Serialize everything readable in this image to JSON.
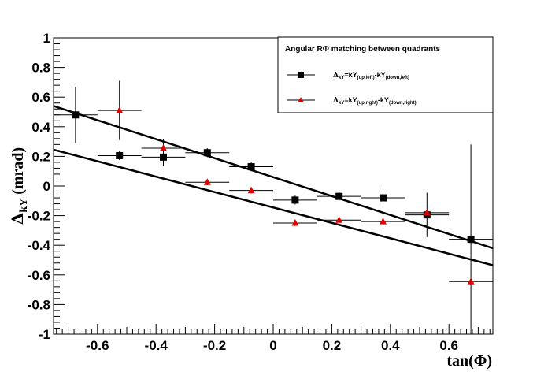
{
  "chart_data": {
    "type": "scatter",
    "title": "",
    "xlabel": "tan(Φ)",
    "ylabel_main": "Δ",
    "ylabel_sub": "kY",
    "ylabel_unit": "(mrad)",
    "xlim": [
      -0.75,
      0.75
    ],
    "ylim": [
      -1,
      1
    ],
    "x_ticks": [
      -0.6,
      -0.4,
      -0.2,
      0,
      0.2,
      0.4,
      0.6
    ],
    "x_tick_labels": [
      "-0.6",
      "-0.4",
      "-0.2",
      "0",
      "0.2",
      "0.4",
      "0.6"
    ],
    "y_ticks": [
      -1,
      -0.8,
      -0.6,
      -0.4,
      -0.2,
      0,
      0.2,
      0.4,
      0.6,
      0.8,
      1
    ],
    "y_tick_labels": [
      "-1",
      "-0.8",
      "-0.6",
      "-0.4",
      "-0.2",
      "0",
      "0.2",
      "0.4",
      "0.6",
      "0.8",
      "1"
    ],
    "grid": false,
    "legend": {
      "title": "Angular RΦ matching between quadrants",
      "placement": "top-right",
      "entries": [
        {
          "main": "Δ",
          "sub1": "kY",
          "eq": "=kY",
          "sub2": "(up,left)",
          "mid": "-kY",
          "sub3": "(down,left)"
        },
        {
          "main": "Δ",
          "sub1": "kY",
          "eq": "=kY",
          "sub2": "(up,right)",
          "mid": "-kY",
          "sub3": "(down,right)"
        }
      ]
    },
    "series": [
      {
        "marker": "square",
        "color": "#000000",
        "points": [
          {
            "x": -0.675,
            "y": 0.48,
            "xerr": 0.075,
            "yerr": 0.19
          },
          {
            "x": -0.525,
            "y": 0.205,
            "xerr": 0.075,
            "yerr": 0.03
          },
          {
            "x": -0.375,
            "y": 0.195,
            "xerr": 0.075,
            "yerr": 0.06
          },
          {
            "x": -0.225,
            "y": 0.225,
            "xerr": 0.075,
            "yerr": 0.03
          },
          {
            "x": -0.075,
            "y": 0.13,
            "xerr": 0.075,
            "yerr": 0.03
          },
          {
            "x": 0.075,
            "y": -0.095,
            "xerr": 0.075,
            "yerr": 0.03
          },
          {
            "x": 0.225,
            "y": -0.07,
            "xerr": 0.075,
            "yerr": 0.03
          },
          {
            "x": 0.375,
            "y": -0.08,
            "xerr": 0.075,
            "yerr": 0.06
          },
          {
            "x": 0.525,
            "y": -0.195,
            "xerr": 0.075,
            "yerr": 0.15
          },
          {
            "x": 0.675,
            "y": -0.36,
            "xerr": 0.075,
            "yerr": 0.64
          }
        ],
        "fit": {
          "x": [
            -0.75,
            0.75
          ],
          "y": [
            0.54,
            -0.42
          ]
        }
      },
      {
        "marker": "triangle",
        "color": "#e00000",
        "points": [
          {
            "x": -0.525,
            "y": 0.51,
            "xerr": 0.075,
            "yerr": 0.2
          },
          {
            "x": -0.375,
            "y": 0.255,
            "xerr": 0.075,
            "yerr": 0.06
          },
          {
            "x": -0.225,
            "y": 0.025,
            "xerr": 0.075,
            "yerr": 0.02
          },
          {
            "x": -0.075,
            "y": -0.03,
            "xerr": 0.075,
            "yerr": 0.02
          },
          {
            "x": 0.075,
            "y": -0.25,
            "xerr": 0.075,
            "yerr": 0.02
          },
          {
            "x": 0.225,
            "y": -0.23,
            "xerr": 0.075,
            "yerr": 0.02
          },
          {
            "x": 0.375,
            "y": -0.24,
            "xerr": 0.075,
            "yerr": 0.05
          },
          {
            "x": 0.525,
            "y": -0.18,
            "xerr": 0.075,
            "yerr": 0.02
          },
          {
            "x": 0.675,
            "y": -0.645,
            "xerr": 0.075,
            "yerr": 0.02
          }
        ],
        "fit": {
          "x": [
            -0.75,
            0.75
          ],
          "y": [
            0.245,
            -0.535
          ]
        }
      }
    ]
  }
}
